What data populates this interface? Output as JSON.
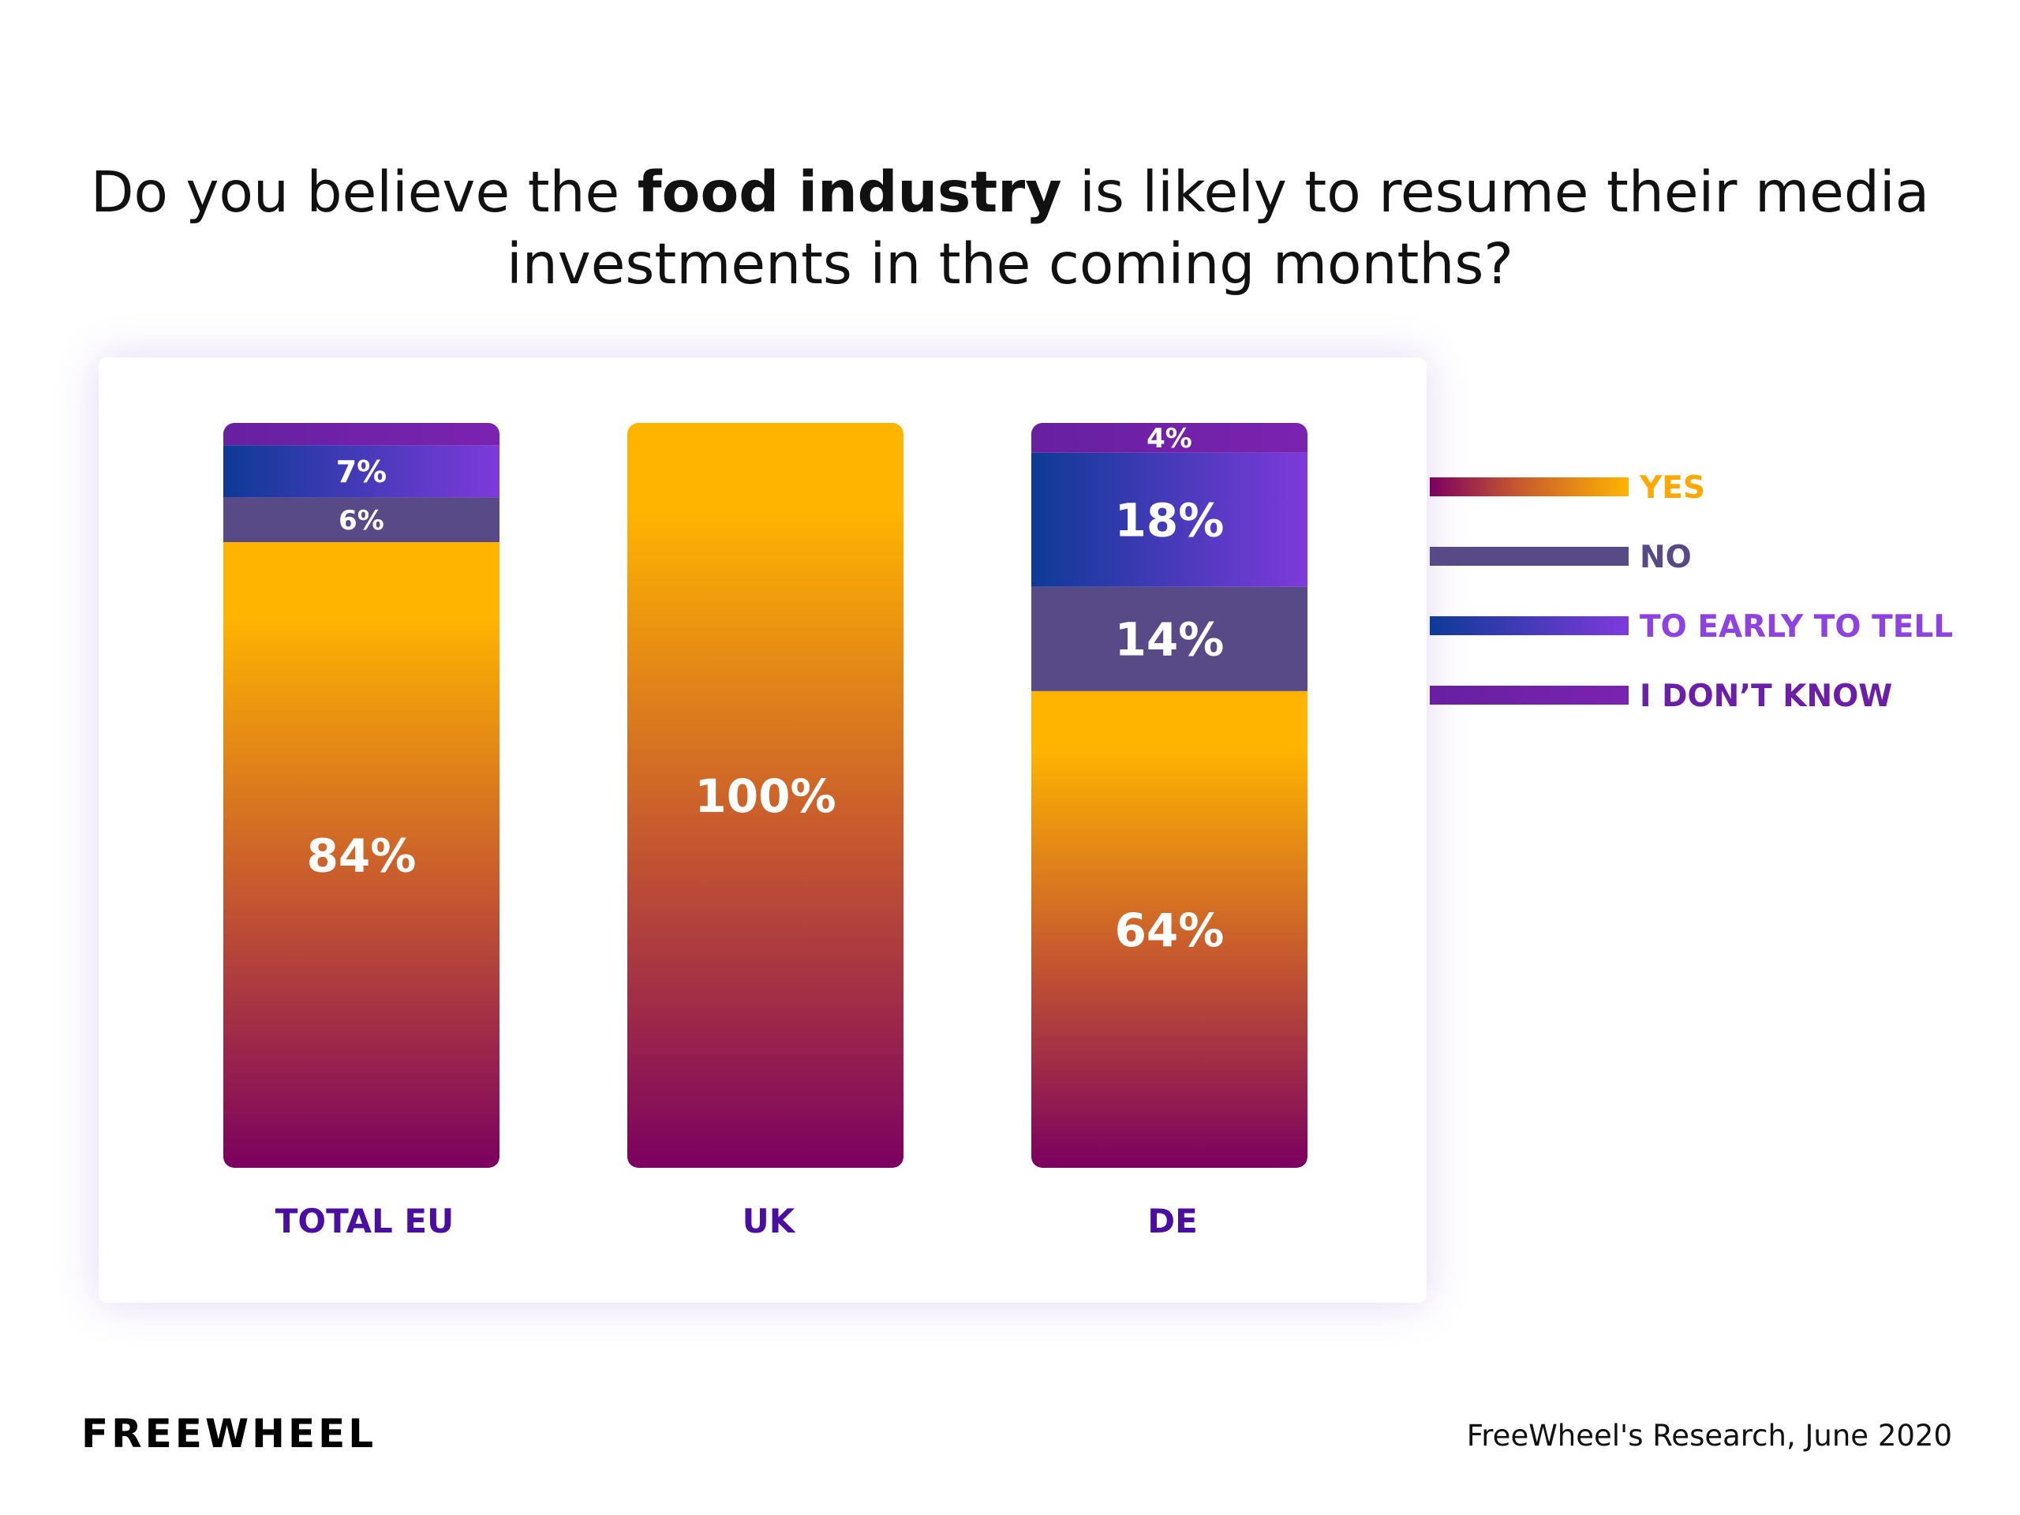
{
  "title": {
    "before": "Do you believe the ",
    "bold": "food industry",
    "after": " is likely to resume their media investments in the coming months?"
  },
  "footer": {
    "logo": "FREEWHEEL",
    "source": "FreeWheel's Research, June 2020"
  },
  "colors": {
    "yes_top": "#FFB400",
    "yes_mid": "#C75A2E",
    "yes_bottom": "#7B0060",
    "no": "#584A86",
    "early_left": "#0E3A96",
    "early_right": "#7E3ADB",
    "dontknow_left": "#6720A0",
    "dontknow_right": "#7A23B0",
    "category": "#4B0FA0",
    "legend_yes": "#FFA800",
    "legend_no": "#584A86",
    "legend_early": "#8E43E0",
    "legend_dontknow": "#6A1FA6"
  },
  "chart_data": {
    "type": "bar",
    "stacked": true,
    "categories": [
      "TOTAL EU",
      "UK",
      "DE"
    ],
    "series": [
      {
        "name": "YES",
        "key": "yes",
        "values": [
          84,
          100,
          64
        ]
      },
      {
        "name": "NO",
        "key": "no",
        "values": [
          6,
          0,
          14
        ]
      },
      {
        "name": "TO EARLY TO TELL",
        "key": "early",
        "values": [
          7,
          0,
          18
        ]
      },
      {
        "name": "I DON’T KNOW",
        "key": "dontknow",
        "values": [
          3,
          0,
          4
        ]
      }
    ],
    "data_labels": [
      {
        "category": "TOTAL EU",
        "yes": "84%",
        "no": "6%",
        "early": "7%",
        "dontknow": ""
      },
      {
        "category": "UK",
        "yes": "100%",
        "no": "",
        "early": "",
        "dontknow": ""
      },
      {
        "category": "DE",
        "yes": "64%",
        "no": "14%",
        "early": "18%",
        "dontknow": "4%"
      }
    ],
    "legend_position": "right",
    "ylim": [
      0,
      100
    ],
    "grid": false
  }
}
